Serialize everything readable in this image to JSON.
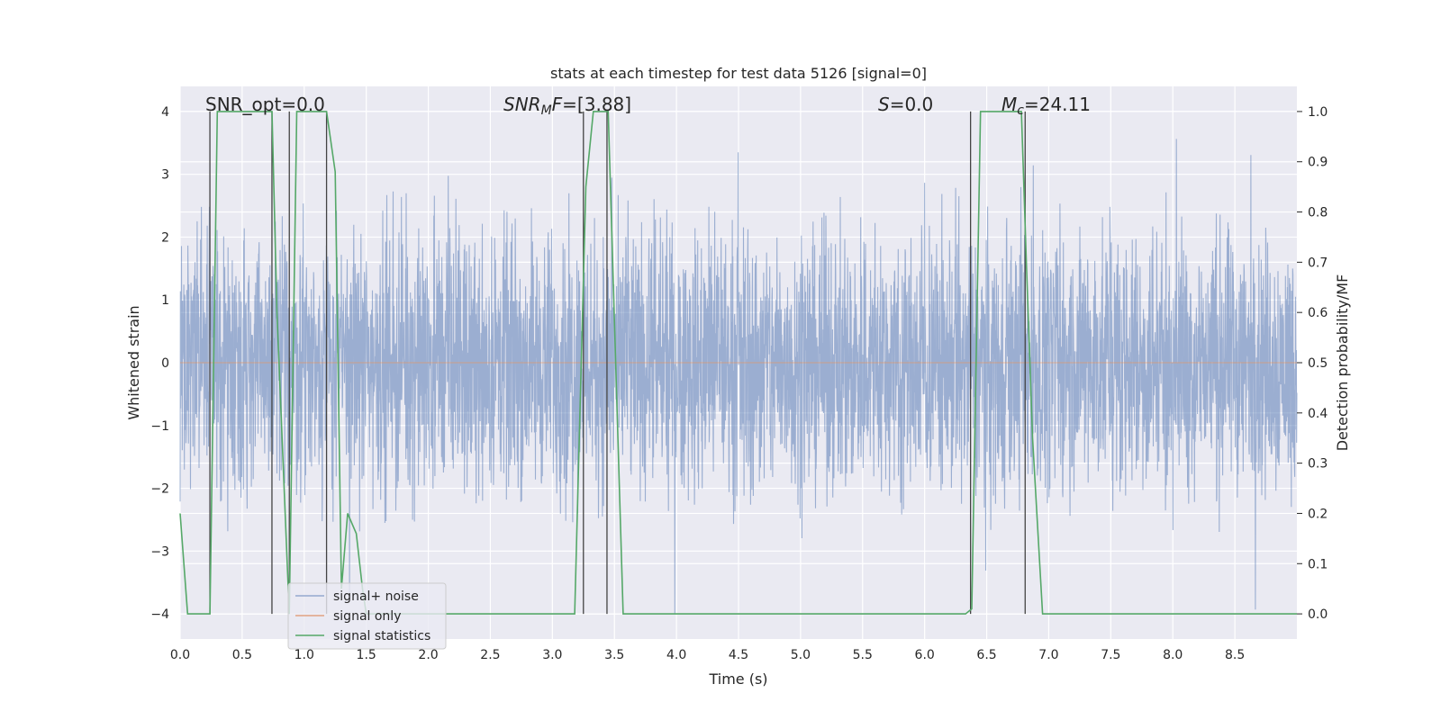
{
  "chart_data": {
    "type": "line",
    "title": "stats at each timestep for test data 5126 [signal=0]",
    "xlabel": "Time (s)",
    "ylabel_left": "Whitened strain",
    "ylabel_right": "Detection probability/MF",
    "xlim": [
      0.0,
      9.0
    ],
    "ylim_left": [
      -4.4,
      4.4
    ],
    "ylim_right": [
      -0.05,
      1.05
    ],
    "xticks": [
      0.0,
      0.5,
      1.0,
      1.5,
      2.0,
      2.5,
      3.0,
      3.5,
      4.0,
      4.5,
      5.0,
      5.5,
      6.0,
      6.5,
      7.0,
      7.5,
      8.0,
      8.5
    ],
    "xtick_labels": [
      "0.0",
      "0.5",
      "1.0",
      "1.5",
      "2.0",
      "2.5",
      "3.0",
      "3.5",
      "4.0",
      "4.5",
      "5.0",
      "5.5",
      "6.0",
      "6.5",
      "7.0",
      "7.5",
      "8.0",
      "8.5"
    ],
    "yticks_left": [
      4,
      3,
      2,
      1,
      0,
      -1,
      -2,
      -3,
      -4
    ],
    "ytick_labels_left": [
      "4",
      "3",
      "2",
      "1",
      "0",
      "−1",
      "−2",
      "−3",
      "−4"
    ],
    "yticks_right": [
      1.0,
      0.9,
      0.8,
      0.7,
      0.6,
      0.5,
      0.4,
      0.3,
      0.2,
      0.1,
      0.0
    ],
    "ytick_labels_right": [
      "1.0",
      "0.9",
      "0.8",
      "0.7",
      "0.6",
      "0.5",
      "0.4",
      "0.3",
      "0.2",
      "0.1",
      "0.0"
    ],
    "annotations": {
      "snr_opt": "SNR_opt=0.0",
      "snr_mf_base": "SNR",
      "snr_mf_sub": "M",
      "snr_mf_italic": "F",
      "snr_mf_value": "=[3.88]",
      "s_italic": "S",
      "s_value": "=0.0",
      "mc_italic": "M",
      "mc_sub": "c",
      "mc_value": "=24.11"
    },
    "legend": {
      "position": "lower-left",
      "entries": [
        "signal+ noise",
        "signal only",
        "signal statistics"
      ]
    },
    "series": [
      {
        "name": "signal+ noise",
        "color": "#4c72b0",
        "style": "dense noise",
        "envelope": {
          "typical_max": 3.0,
          "typical_min": -2.5,
          "extreme_max": 4.0,
          "extreme_min": -4.0
        }
      },
      {
        "name": "signal only",
        "color": "#dd8452",
        "style": "flat zero"
      },
      {
        "name": "signal statistics",
        "color": "#55a868",
        "axis": "right",
        "x": [
          0.0,
          0.06,
          0.24,
          0.3,
          0.74,
          0.78,
          0.88,
          0.94,
          1.18,
          1.25,
          1.3,
          1.35,
          1.42,
          1.47,
          1.5,
          3.18,
          3.27,
          3.33,
          3.45,
          3.57,
          6.33,
          6.38,
          6.45,
          6.78,
          6.82,
          6.87,
          6.95,
          7.05,
          9.0
        ],
        "y": [
          0.2,
          0.0,
          0.0,
          1.0,
          1.0,
          0.6,
          0.0,
          1.0,
          1.0,
          0.88,
          0.05,
          0.2,
          0.16,
          0.05,
          0.0,
          0.0,
          0.85,
          1.0,
          1.0,
          0.0,
          0.0,
          0.01,
          1.0,
          1.0,
          0.7,
          0.35,
          0.0,
          0.0,
          0.0
        ]
      }
    ],
    "detection_markers": {
      "color": "#444444",
      "x": [
        0.24,
        0.74,
        0.88,
        1.18,
        3.25,
        3.44,
        6.37,
        6.81
      ],
      "y_top": [
        1.0,
        1.0,
        1.0,
        1.0,
        1.0,
        1.0,
        1.0,
        1.0
      ]
    }
  }
}
